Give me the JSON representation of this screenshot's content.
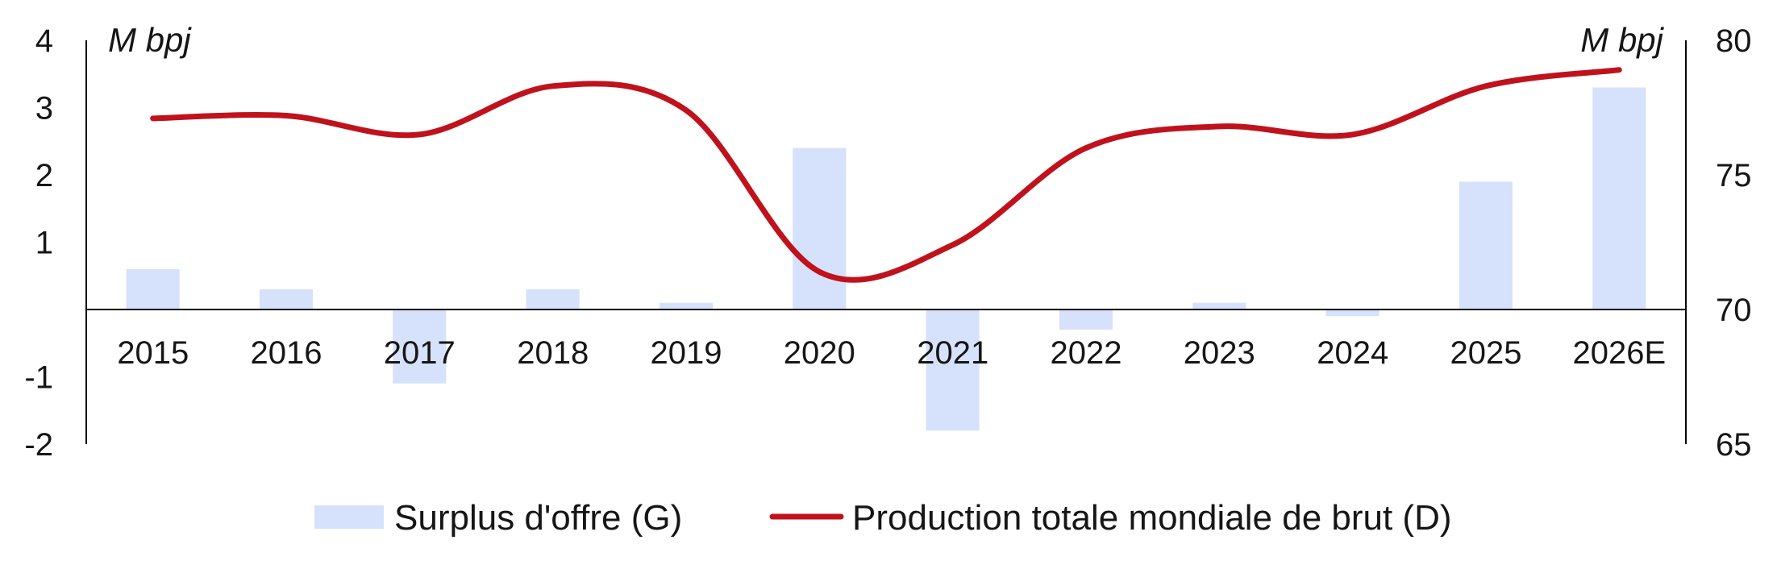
{
  "chart_data": {
    "type": "bar",
    "categories": [
      "2015",
      "2016",
      "2017",
      "2018",
      "2019",
      "2020",
      "2021",
      "2022",
      "2023",
      "2024",
      "2025",
      "2026E"
    ],
    "series": [
      {
        "name": "Surplus d'offre (G)",
        "type": "bar",
        "axis": "left",
        "color": "#d6e2fb",
        "values": [
          0.6,
          0.3,
          -1.1,
          0.3,
          0.1,
          2.4,
          -1.8,
          -0.3,
          0.1,
          -0.1,
          1.9,
          3.3
        ]
      },
      {
        "name": "Production totale mondiale de brut (D)",
        "type": "line",
        "axis": "right",
        "smooth": true,
        "color": "#c0121c",
        "values": [
          77.1,
          77.2,
          76.5,
          78.3,
          77.4,
          71.4,
          72.4,
          76.0,
          76.8,
          76.5,
          78.3,
          78.9
        ]
      }
    ],
    "y_left": {
      "label": "M bpj",
      "range": [
        -2,
        4
      ],
      "ticks": [
        4,
        3,
        2,
        1,
        -1,
        -2
      ]
    },
    "y_right": {
      "label": "M bpj",
      "range": [
        65,
        80
      ],
      "ticks": [
        80,
        75,
        70,
        65
      ]
    },
    "grid": false,
    "legend_position": "bottom"
  }
}
